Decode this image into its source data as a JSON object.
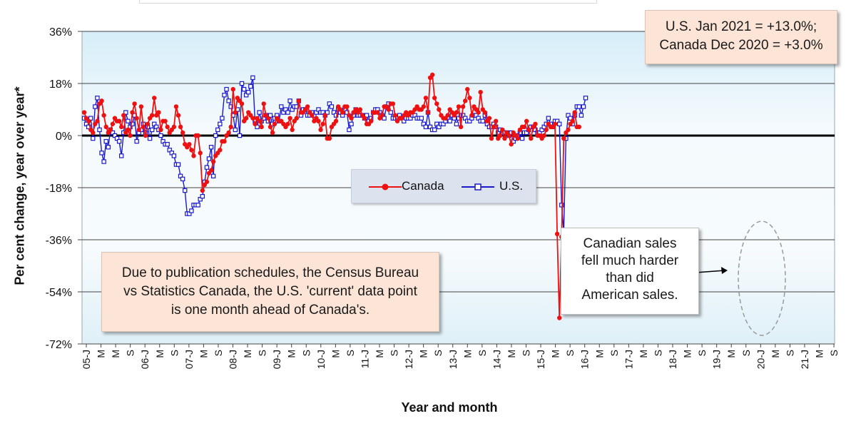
{
  "chart_data": {
    "type": "line",
    "ylabel": "Per cent change, year over year*",
    "xlabel": "Year and month",
    "ylim": [
      -72,
      36
    ],
    "yticks": [
      "36%",
      "18%",
      "0%",
      "-18%",
      "-36%",
      "-54%",
      "-72%"
    ],
    "xticks": [
      "05-J",
      "M",
      "M",
      "S",
      "06-J",
      "M",
      "S",
      "07-J",
      "M",
      "S",
      "08-J",
      "M",
      "S",
      "09-J",
      "M",
      "S",
      "10-J",
      "M",
      "S",
      "11-J",
      "M",
      "S",
      "12-J",
      "M",
      "S",
      "13-J",
      "M",
      "S",
      "14-J",
      "M",
      "S",
      "15-J",
      "M",
      "S",
      "16-J",
      "M",
      "S",
      "17-J",
      "M",
      "S",
      "18-J",
      "M",
      "S",
      "19-J",
      "M",
      "S",
      "20-J",
      "M",
      "S",
      "21-J",
      "M",
      "S"
    ],
    "grid": true,
    "legend_position": "center",
    "series": [
      {
        "name": "Canada",
        "color": "#ee1111",
        "marker": "circle",
        "values": [
          8,
          6,
          5,
          2,
          1,
          4,
          5,
          11,
          12,
          7,
          3,
          1,
          2,
          4,
          6,
          5,
          5,
          3,
          7,
          1,
          2,
          0,
          8,
          11,
          6,
          2,
          10,
          3,
          0,
          4,
          6,
          7,
          13,
          7,
          8,
          2,
          5,
          5,
          3,
          1,
          2,
          3,
          10,
          7,
          3,
          1,
          -3,
          -4,
          -3,
          -5,
          -7,
          0,
          0,
          -6,
          -19,
          -17,
          -16,
          -13,
          -12,
          -9,
          -7,
          -6,
          -5,
          -2,
          -2,
          0,
          1,
          3,
          16,
          8,
          13,
          12,
          11,
          5,
          6,
          8,
          7,
          6,
          4,
          6,
          5,
          3,
          11,
          7,
          6,
          3,
          1,
          4,
          6,
          5,
          5,
          4,
          3,
          4,
          6,
          2,
          5,
          6,
          12,
          8,
          8,
          9,
          10,
          8,
          7,
          5,
          6,
          5,
          2,
          4,
          7,
          -1,
          -1,
          3,
          4,
          5,
          10,
          9,
          8,
          10,
          10,
          7,
          6,
          8,
          9,
          8,
          9,
          7,
          6,
          4,
          4,
          5,
          8,
          8,
          8,
          6,
          7,
          10,
          10,
          9,
          11,
          11,
          7,
          5,
          6,
          6,
          7,
          8,
          7,
          8,
          8,
          9,
          10,
          9,
          9,
          10,
          13,
          8,
          20,
          21,
          13,
          11,
          9,
          7,
          6,
          6,
          7,
          9,
          8,
          7,
          8,
          10,
          3,
          10,
          12,
          16,
          13,
          7,
          10,
          9,
          8,
          15,
          9,
          8,
          5,
          6,
          -1,
          3,
          5,
          -1,
          0,
          2,
          -1,
          1,
          0,
          -3,
          1,
          0,
          -1,
          2,
          3,
          3,
          5,
          2,
          -1,
          3,
          4,
          0,
          0,
          -1,
          0,
          2,
          4,
          3,
          3,
          4,
          -34,
          -63,
          -35,
          -1,
          1,
          2,
          4,
          5,
          8,
          3,
          3
        ]
      },
      {
        "name": "U.S.",
        "color": "#1a1acc",
        "marker": "square",
        "values": [
          6,
          4,
          3,
          6,
          -1,
          10,
          13,
          2,
          -6,
          -9,
          -2,
          -4,
          2,
          1,
          0,
          -1,
          -2,
          -7,
          1,
          8,
          5,
          3,
          4,
          7,
          -2,
          1,
          2,
          4,
          1,
          3,
          -1,
          2,
          4,
          3,
          2,
          0,
          -2,
          -3,
          -3,
          -5,
          -6,
          -7,
          -10,
          -10,
          -14,
          -15,
          -19,
          -27,
          -27,
          -26,
          -24,
          -24,
          -24,
          -22,
          -21,
          -16,
          -11,
          -8,
          -4,
          -14,
          0,
          2,
          4,
          6,
          14,
          16,
          12,
          10,
          7,
          2,
          9,
          0,
          18,
          16,
          14,
          15,
          17,
          20,
          5,
          3,
          8,
          5,
          6,
          7,
          5,
          7,
          4,
          6,
          7,
          5,
          10,
          8,
          9,
          8,
          12,
          9,
          10,
          10,
          12,
          7,
          9,
          9,
          7,
          7,
          8,
          7,
          8,
          9,
          8,
          8,
          7,
          8,
          11,
          10,
          8,
          7,
          9,
          8,
          7,
          9,
          8,
          2,
          4,
          7,
          9,
          7,
          7,
          7,
          6,
          7,
          5,
          6,
          8,
          9,
          9,
          8,
          7,
          6,
          10,
          11,
          8,
          6,
          6,
          6,
          7,
          6,
          5,
          6,
          6,
          6,
          7,
          7,
          6,
          6,
          6,
          4,
          3,
          8,
          3,
          2,
          2,
          4,
          3,
          4,
          4,
          5,
          6,
          5,
          7,
          6,
          4,
          6,
          7,
          7,
          6,
          5,
          5,
          6,
          7,
          7,
          6,
          5,
          5,
          7,
          4,
          3,
          3,
          4,
          3,
          1,
          2,
          1,
          1,
          1,
          0,
          1,
          -2,
          -1,
          0,
          1,
          -1,
          1,
          1,
          2,
          3,
          3,
          2,
          1,
          1,
          2,
          3,
          4,
          6,
          4,
          3,
          5,
          5,
          4,
          -24,
          -33,
          -1,
          7,
          6,
          4,
          7,
          10,
          10,
          7,
          10,
          13
        ]
      }
    ]
  },
  "legend": {
    "canada": "Canada",
    "us": "U.S."
  },
  "annotations": {
    "top_right": [
      "U.S. Jan 2021 = +13.0%;",
      "Canada Dec 2020 = +3.0%"
    ],
    "bottom_left": [
      "Due to publication schedules, the Census Bureau",
      "vs Statistics Canada, the U.S. 'current' data point",
      "is one month ahead of Canada's."
    ],
    "canada_drop": [
      "Canadian sales",
      "fell much harder",
      "than did",
      "American sales."
    ]
  }
}
